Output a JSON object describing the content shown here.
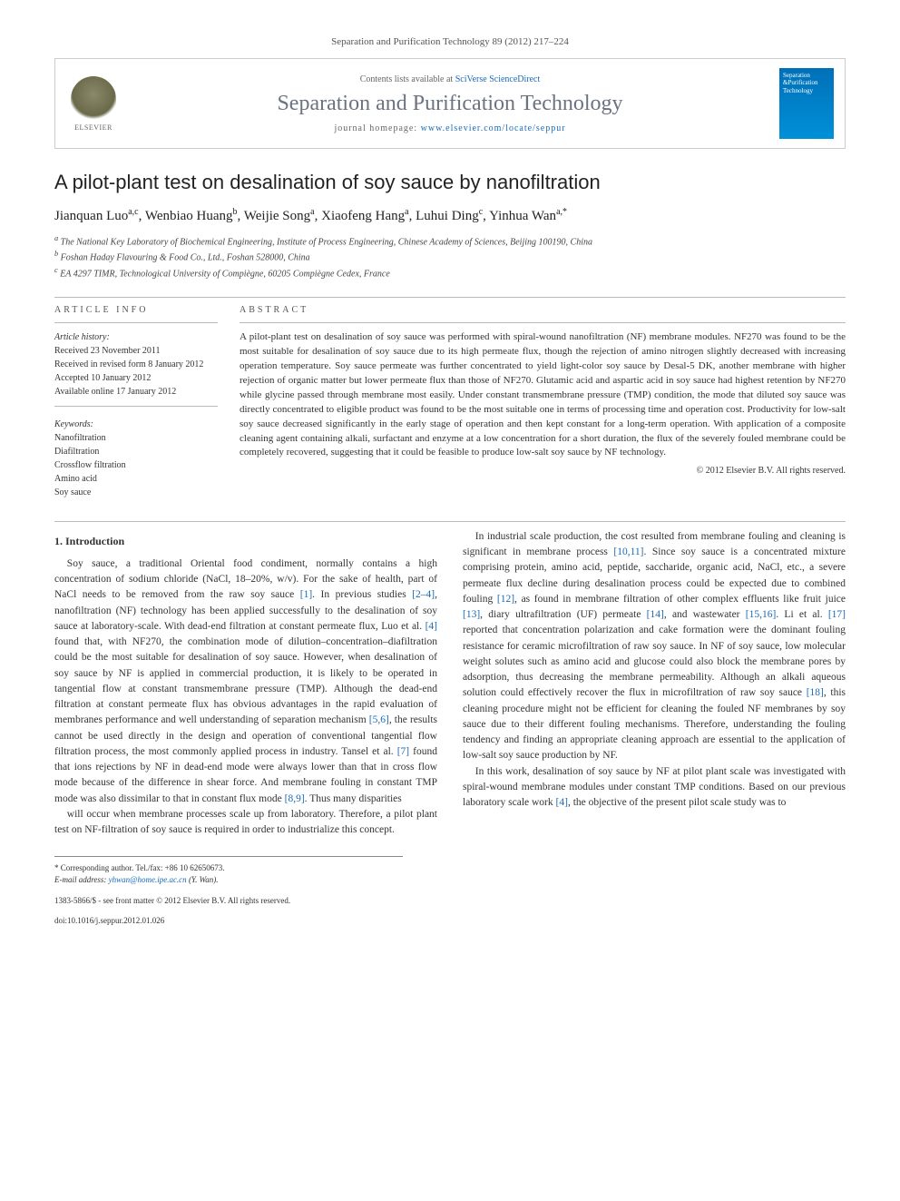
{
  "citation": "Separation and Purification Technology 89 (2012) 217–224",
  "header": {
    "contents_prefix": "Contents lists available at ",
    "contents_link": "SciVerse ScienceDirect",
    "journal_title": "Separation and Purification Technology",
    "homepage_prefix": "journal homepage: ",
    "homepage_link": "www.elsevier.com/locate/seppur",
    "publisher": "ELSEVIER",
    "cover_line1": "Separation",
    "cover_line2": "&Purification",
    "cover_line3": "Technology"
  },
  "article": {
    "title": "A pilot-plant test on desalination of soy sauce by nanofiltration",
    "authors_html": "Jianquan Luo|a,c|, Wenbiao Huang|b|, Weijie Song|a|, Xiaofeng Hang|a|, Luhui Ding|c|, Yinhua Wan|a,*|",
    "authors": [
      {
        "name": "Jianquan Luo",
        "sup": "a,c"
      },
      {
        "name": "Wenbiao Huang",
        "sup": "b"
      },
      {
        "name": "Weijie Song",
        "sup": "a"
      },
      {
        "name": "Xiaofeng Hang",
        "sup": "a"
      },
      {
        "name": "Luhui Ding",
        "sup": "c"
      },
      {
        "name": "Yinhua Wan",
        "sup": "a,*"
      }
    ],
    "affiliations": [
      {
        "sup": "a",
        "text": "The National Key Laboratory of Biochemical Engineering, Institute of Process Engineering, Chinese Academy of Sciences, Beijing 100190, China"
      },
      {
        "sup": "b",
        "text": "Foshan Haday Flavouring & Food Co., Ltd., Foshan 528000, China"
      },
      {
        "sup": "c",
        "text": "EA 4297 TIMR, Technological University of Compiègne, 60205 Compiègne Cedex, France"
      }
    ]
  },
  "info": {
    "heading": "ARTICLE INFO",
    "history_label": "Article history:",
    "history": [
      "Received 23 November 2011",
      "Received in revised form 8 January 2012",
      "Accepted 10 January 2012",
      "Available online 17 January 2012"
    ],
    "keywords_label": "Keywords:",
    "keywords": [
      "Nanofiltration",
      "Diafiltration",
      "Crossflow filtration",
      "Amino acid",
      "Soy sauce"
    ]
  },
  "abstract": {
    "heading": "ABSTRACT",
    "text": "A pilot-plant test on desalination of soy sauce was performed with spiral-wound nanofiltration (NF) membrane modules. NF270 was found to be the most suitable for desalination of soy sauce due to its high permeate flux, though the rejection of amino nitrogen slightly decreased with increasing operation temperature. Soy sauce permeate was further concentrated to yield light-color soy sauce by Desal-5 DK, another membrane with higher rejection of organic matter but lower permeate flux than those of NF270. Glutamic acid and aspartic acid in soy sauce had highest retention by NF270 while glycine passed through membrane most easily. Under constant transmembrane pressure (TMP) condition, the mode that diluted soy sauce was directly concentrated to eligible product was found to be the most suitable one in terms of processing time and operation cost. Productivity for low-salt soy sauce decreased significantly in the early stage of operation and then kept constant for a long-term operation. With application of a composite cleaning agent containing alkali, surfactant and enzyme at a low concentration for a short duration, the flux of the severely fouled membrane could be completely recovered, suggesting that it could be feasible to produce low-salt soy sauce by NF technology.",
    "copyright": "© 2012 Elsevier B.V. All rights reserved."
  },
  "body": {
    "section1_title": "1. Introduction",
    "p1": "Soy sauce, a traditional Oriental food condiment, normally contains a high concentration of sodium chloride (NaCl, 18–20%, w/v). For the sake of health, part of NaCl needs to be removed from the raw soy sauce [1]. In previous studies [2–4], nanofiltration (NF) technology has been applied successfully to the desalination of soy sauce at laboratory-scale. With dead-end filtration at constant permeate flux, Luo et al. [4] found that, with NF270, the combination mode of dilution–concentration–diafiltration could be the most suitable for desalination of soy sauce. However, when desalination of soy sauce by NF is applied in commercial production, it is likely to be operated in tangential flow at constant transmembrane pressure (TMP). Although the dead-end filtration at constant permeate flux has obvious advantages in the rapid evaluation of membranes performance and well understanding of separation mechanism [5,6], the results cannot be used directly in the design and operation of conventional tangential flow filtration process, the most commonly applied process in industry. Tansel et al. [7] found that ions rejections by NF in dead-end mode were always lower than that in cross flow mode because of the difference in shear force. And membrane fouling in constant TMP mode was also dissimilar to that in constant flux mode [8,9]. Thus many disparities",
    "p2": "will occur when membrane processes scale up from laboratory. Therefore, a pilot plant test on NF-filtration of soy sauce is required in order to industrialize this concept.",
    "p3": "In industrial scale production, the cost resulted from membrane fouling and cleaning is significant in membrane process [10,11]. Since soy sauce is a concentrated mixture comprising protein, amino acid, peptide, saccharide, organic acid, NaCl, etc., a severe permeate flux decline during desalination process could be expected due to combined fouling [12], as found in membrane filtration of other complex effluents like fruit juice [13], diary ultrafiltration (UF) permeate [14], and wastewater [15,16]. Li et al. [17] reported that concentration polarization and cake formation were the dominant fouling resistance for ceramic microfiltration of raw soy sauce. In NF of soy sauce, low molecular weight solutes such as amino acid and glucose could also block the membrane pores by adsorption, thus decreasing the membrane permeability. Although an alkali aqueous solution could effectively recover the flux in microfiltration of raw soy sauce [18], this cleaning procedure might not be efficient for cleaning the fouled NF membranes by soy sauce due to their different fouling mechanisms. Therefore, understanding the fouling tendency and finding an appropriate cleaning approach are essential to the application of low-salt soy sauce production by NF.",
    "p4": "In this work, desalination of soy sauce by NF at pilot plant scale was investigated with spiral-wound membrane modules under constant TMP conditions. Based on our previous laboratory scale work [4], the objective of the present pilot scale study was to"
  },
  "footer": {
    "corr": "* Corresponding author. Tel./fax: +86 10 62650673.",
    "email_label": "E-mail address: ",
    "email": "yhwan@home.ipe.ac.cn",
    "email_name": " (Y. Wan).",
    "issn": "1383-5866/$ - see front matter © 2012 Elsevier B.V. All rights reserved.",
    "doi": "doi:10.1016/j.seppur.2012.01.026"
  },
  "refs": [
    "[1]",
    "[2–4]",
    "[4]",
    "[5,6]",
    "[7]",
    "[8,9]",
    "[10,11]",
    "[12]",
    "[13]",
    "[14]",
    "[15,16]",
    "[17]",
    "[18]"
  ],
  "colors": {
    "link": "#1a6bb8",
    "journal_header": "#6b7280",
    "border": "#cccccc",
    "cover_bg_top": "#0070b8",
    "cover_bg_bottom": "#0090d8"
  }
}
